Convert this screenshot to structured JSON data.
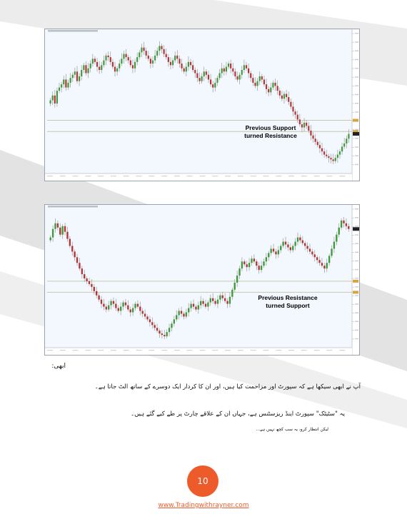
{
  "charts": [
    {
      "id": "chart1",
      "annotation": [
        "Previous Support",
        "turned Resistance"
      ],
      "candles": [
        52,
        55,
        50,
        58,
        60,
        62,
        65,
        60,
        63,
        66,
        68,
        70,
        64,
        67,
        71,
        74,
        69,
        72,
        75,
        78,
        76,
        73,
        71,
        74,
        77,
        80,
        79,
        76,
        73,
        70,
        72,
        75,
        78,
        81,
        79,
        77,
        74,
        72,
        76,
        79,
        82,
        85,
        83,
        80,
        78,
        75,
        77,
        80,
        83,
        86,
        84,
        81,
        79,
        76,
        74,
        77,
        80,
        78,
        75,
        72,
        70,
        73,
        76,
        74,
        71,
        69,
        66,
        64,
        67,
        70,
        68,
        65,
        62,
        60,
        63,
        66,
        69,
        72,
        70,
        73,
        75,
        72,
        70,
        67,
        65,
        68,
        71,
        74,
        72,
        69,
        66,
        63,
        61,
        64,
        67,
        65,
        62,
        59,
        57,
        60,
        63,
        61,
        58,
        55,
        53,
        56,
        54,
        51,
        48,
        45,
        43,
        40,
        37,
        35,
        38,
        36,
        33,
        30,
        28,
        26,
        24,
        22,
        20,
        18,
        17,
        16,
        15,
        14,
        16,
        18,
        20,
        23,
        25,
        28,
        31
      ]
    },
    {
      "id": "chart2",
      "annotation": [
        "Previous Resistance",
        "turned Support"
      ],
      "candles": [
        78,
        84,
        88,
        85,
        80,
        86,
        82,
        77,
        72,
        68,
        64,
        60,
        56,
        52,
        49,
        47,
        45,
        43,
        40,
        37,
        34,
        31,
        29,
        27,
        30,
        33,
        31,
        28,
        26,
        29,
        32,
        30,
        27,
        25,
        28,
        31,
        29,
        26,
        24,
        22,
        20,
        18,
        16,
        14,
        12,
        10,
        9,
        8,
        11,
        14,
        17,
        20,
        23,
        26,
        24,
        22,
        25,
        28,
        31,
        29,
        27,
        30,
        33,
        31,
        29,
        32,
        35,
        33,
        31,
        34,
        37,
        35,
        33,
        31,
        36,
        41,
        46,
        51,
        56,
        61,
        59,
        57,
        60,
        63,
        61,
        58,
        55,
        58,
        61,
        64,
        67,
        70,
        68,
        66,
        69,
        72,
        75,
        73,
        71,
        69,
        72,
        75,
        78,
        76,
        74,
        72,
        70,
        68,
        66,
        64,
        62,
        60,
        58,
        56,
        60,
        65,
        70,
        75,
        80,
        85,
        90,
        88,
        86,
        84
      ]
    }
  ],
  "text": {
    "heading": "ابھی:",
    "line1": "آپ نے ابھی سیکھا ہے کہ سپورٹ اور مزاحمت کیا ہیں، اور ان کا کردار ایک دوسرے کے ساتھ الٹ جاتا ہے۔",
    "line2": "یہ \"سٹیٹک\" سپورٹ اینڈ ریزسٹنس ہے، جہاں ان کے علاقے چارٹ پر طے کیے گئے ہیں۔",
    "line3": "لیکن انتظار کرو، یہ سب کچھ نہیں ہے..."
  },
  "footer": {
    "page_number": "10",
    "link": "www.Tradingwithrayner.com"
  },
  "colors": {
    "bull": "#3f9a3a",
    "bear": "#b33535",
    "wick": "#9a9a9a",
    "chart_bg": "#f3f8ff",
    "accent": "#ee5b2b"
  }
}
